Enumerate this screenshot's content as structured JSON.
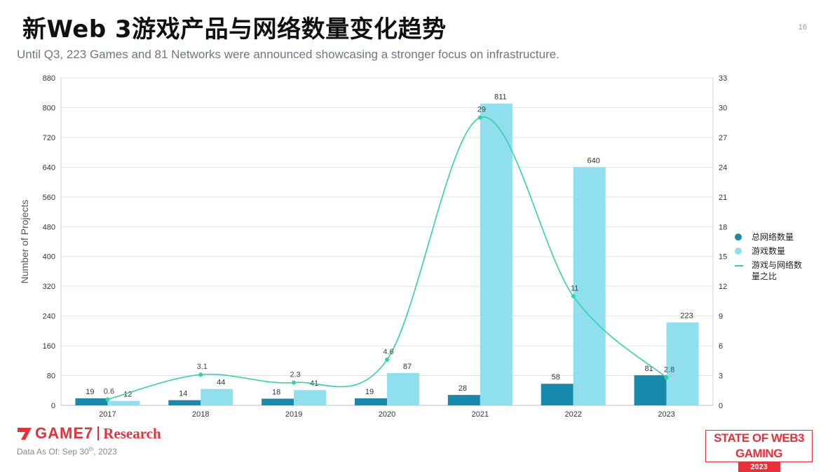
{
  "header": {
    "title": "新Web 3游戏产品与网络数量变化趋势",
    "page_number": "16",
    "subtitle": "Until Q3, 223 Games and 81 Networks were announced showcasing a stronger focus on infrastructure."
  },
  "chart_data": {
    "type": "bar",
    "title": "",
    "categories": [
      "2017",
      "2018",
      "2019",
      "2020",
      "2021",
      "2022",
      "2023"
    ],
    "ylabel": "Number of Projects",
    "ylim": [
      0,
      880
    ],
    "yticks": [
      "0",
      "80",
      "160",
      "240",
      "320",
      "400",
      "480",
      "560",
      "640",
      "720",
      "800",
      "880"
    ],
    "y2lim": [
      0,
      33
    ],
    "y2ticks": [
      "0",
      "3",
      "6",
      "9",
      "12",
      "15",
      "18",
      "21",
      "24",
      "27",
      "30",
      "33"
    ],
    "grid": true,
    "legend_position": "right",
    "series": [
      {
        "name": "总网络数量",
        "type": "bar",
        "axis": "left",
        "color": "#1789ac",
        "values": [
          19,
          14,
          18,
          19,
          28,
          58,
          81
        ]
      },
      {
        "name": "游戏数量",
        "type": "bar",
        "axis": "left",
        "color": "#8fdfee",
        "values": [
          12,
          44,
          41,
          87,
          811,
          640,
          223
        ]
      },
      {
        "name": "游戏与网络数量之比",
        "type": "line",
        "axis": "right",
        "color": "#2fd4a4",
        "smooth": true,
        "values": [
          0.6,
          3.1,
          2.3,
          4.6,
          29,
          11,
          2.8
        ],
        "labels": [
          "0.6",
          "3.1",
          "2.3",
          "4.6",
          "29",
          "11",
          "2.8"
        ]
      }
    ]
  },
  "legend": {
    "items": [
      {
        "label": "总网络数量",
        "color": "#1789ac"
      },
      {
        "label": "游戏数量",
        "color": "#8fdfee"
      },
      {
        "label": "游戏与网络数量之比",
        "color": "#2fd4a4"
      }
    ]
  },
  "footer": {
    "brand": "GAME7",
    "research": "Research",
    "data_note_prefix": "Data As Of: Sep 30",
    "data_note_sup": "th",
    "data_note_suffix": ", 2023",
    "badge_title": "STATE OF WEB3 GAMING",
    "badge_year": "2023"
  },
  "colors": {
    "brand_red": "#e8303a",
    "networks_bar": "#1789ac",
    "games_bar": "#8fdfee",
    "ratio_line": "#2fd4a4"
  }
}
